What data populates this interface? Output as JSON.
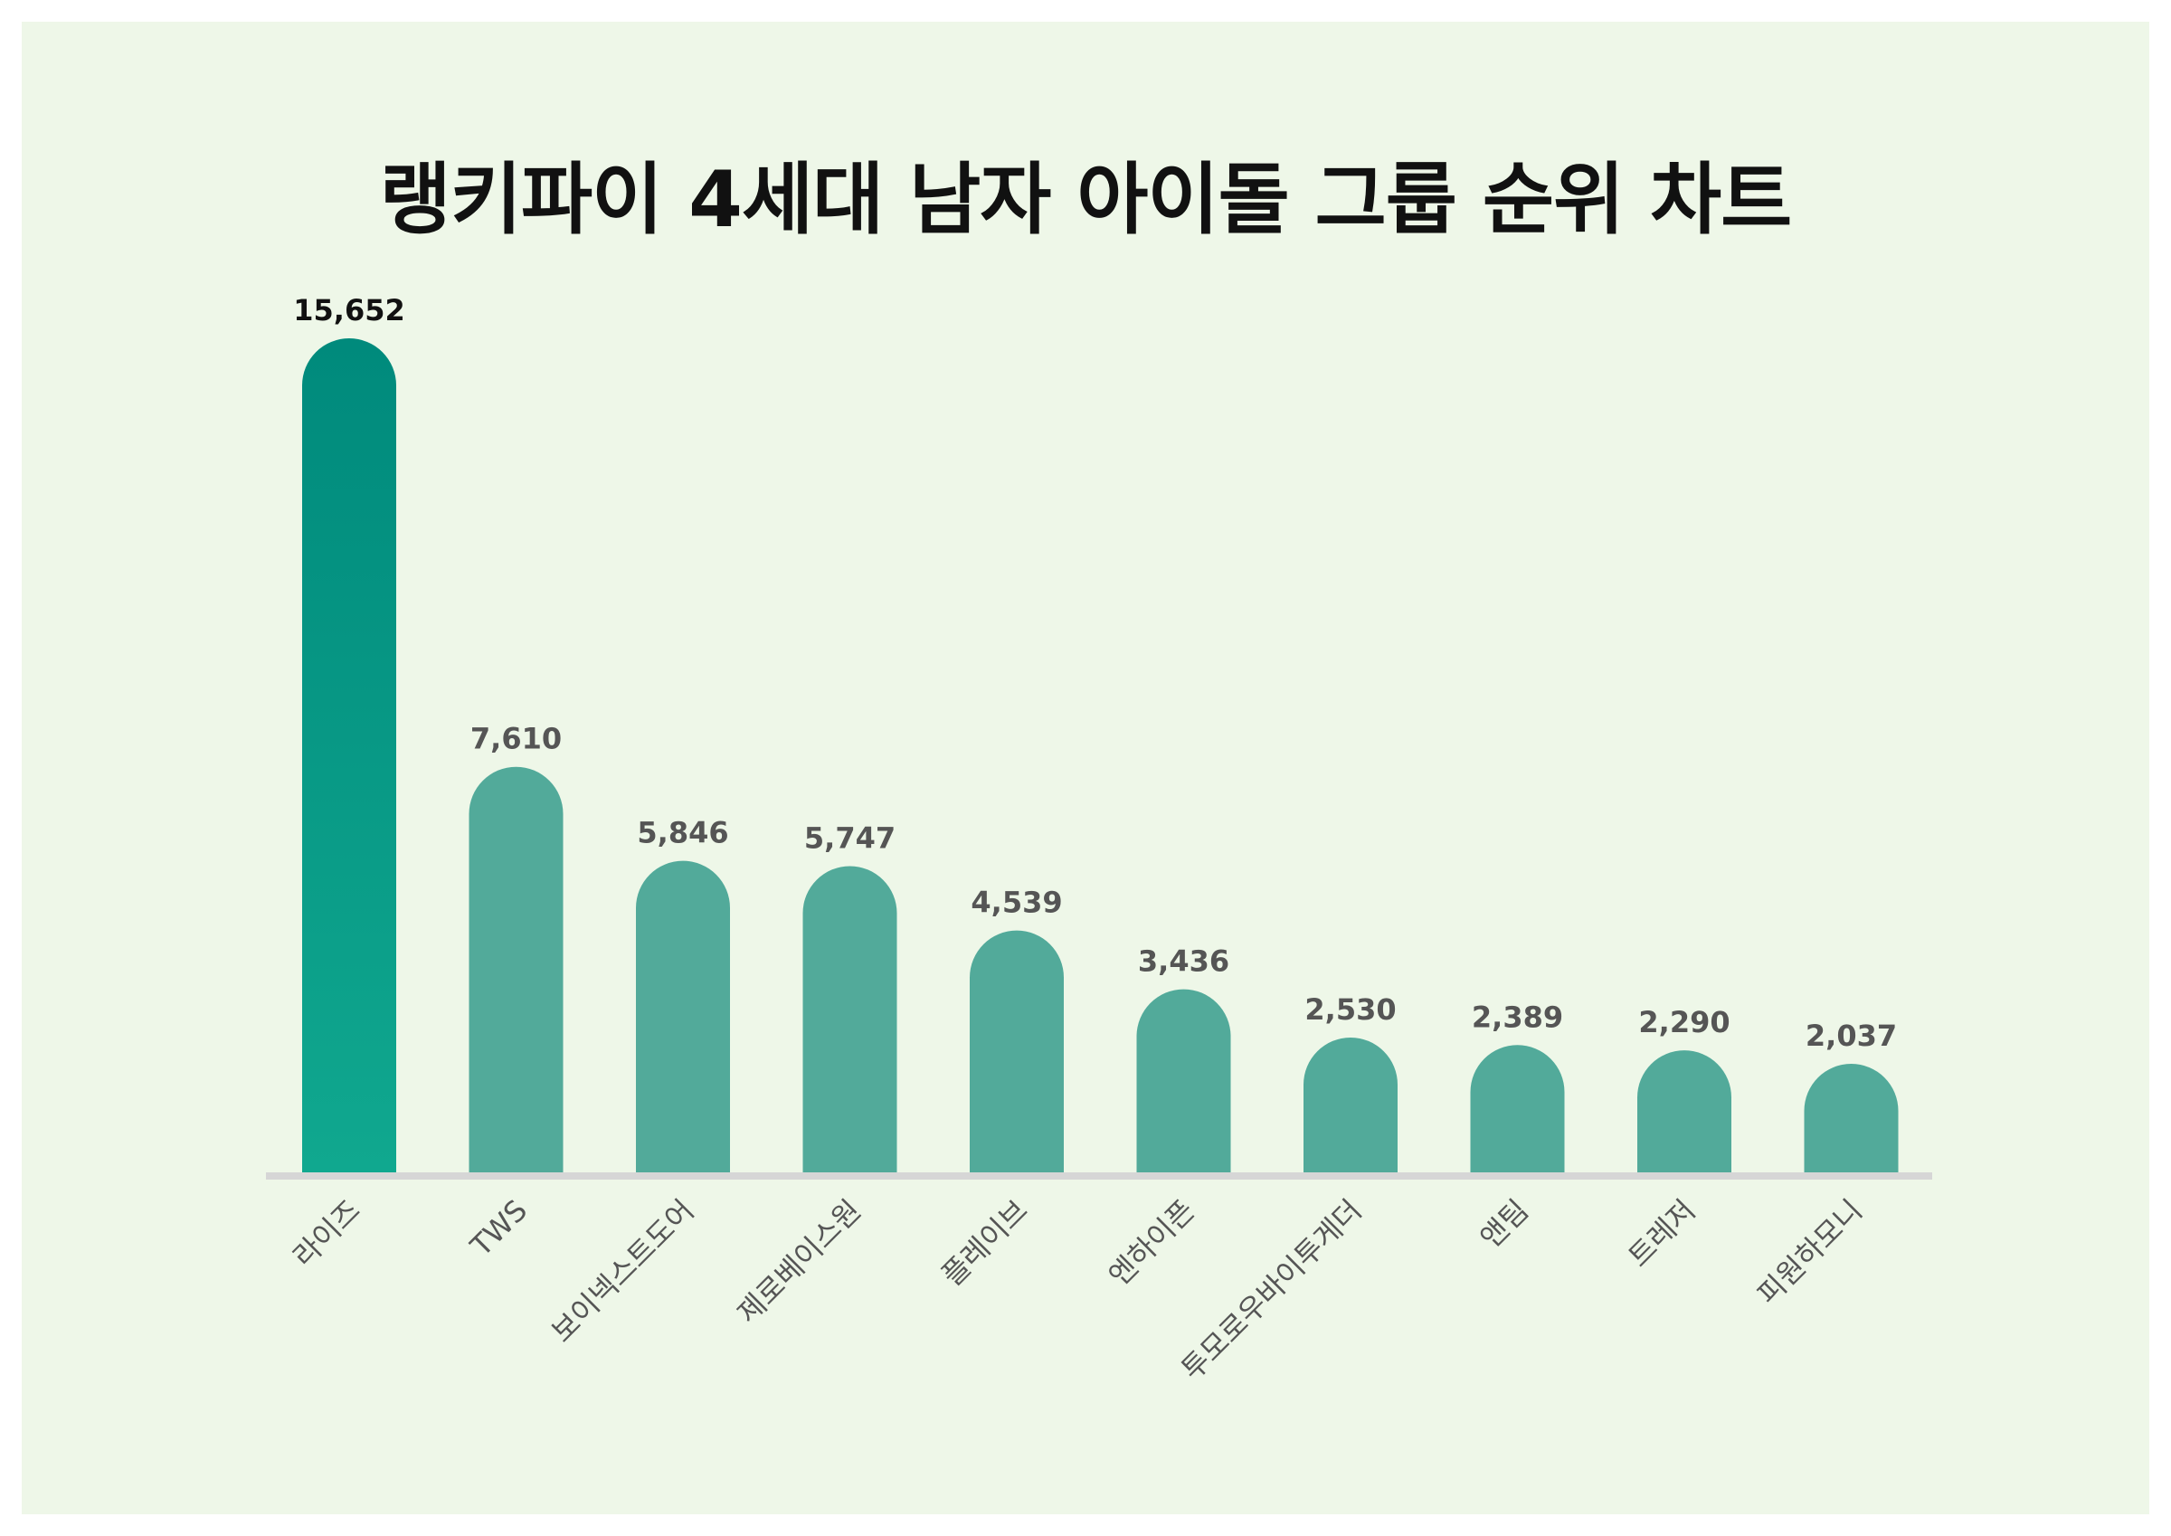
{
  "chart_data": {
    "type": "bar",
    "title": "랭키파이 4세대 남자 아이돌 그룹 순위 차트",
    "categories": [
      "라이즈",
      "TWS",
      "보이넥스트도어",
      "제로베이스원",
      "플레이브",
      "엔하이픈",
      "투모로우바이투게더",
      "앤팀",
      "트레저",
      "피원하모니"
    ],
    "values": [
      15652,
      7610,
      5846,
      5747,
      4539,
      3436,
      2530,
      2389,
      2290,
      2037
    ],
    "value_labels": [
      "15,652",
      "7,610",
      "5,846",
      "5,747",
      "4,539",
      "3,436",
      "2,530",
      "2,389",
      "2,290",
      "2,037"
    ],
    "xlabel": "",
    "ylabel": "",
    "ylim": [
      0,
      15652
    ],
    "grid": false,
    "legend": "none",
    "colors": {
      "highlight_top": "#008a7c",
      "highlight_bottom": "#10a88f",
      "bar": "#52aa9a",
      "baseline": "#d6d6d6",
      "highlight_label": "#111111",
      "label": "#555555",
      "background": "#eef7e8"
    }
  }
}
